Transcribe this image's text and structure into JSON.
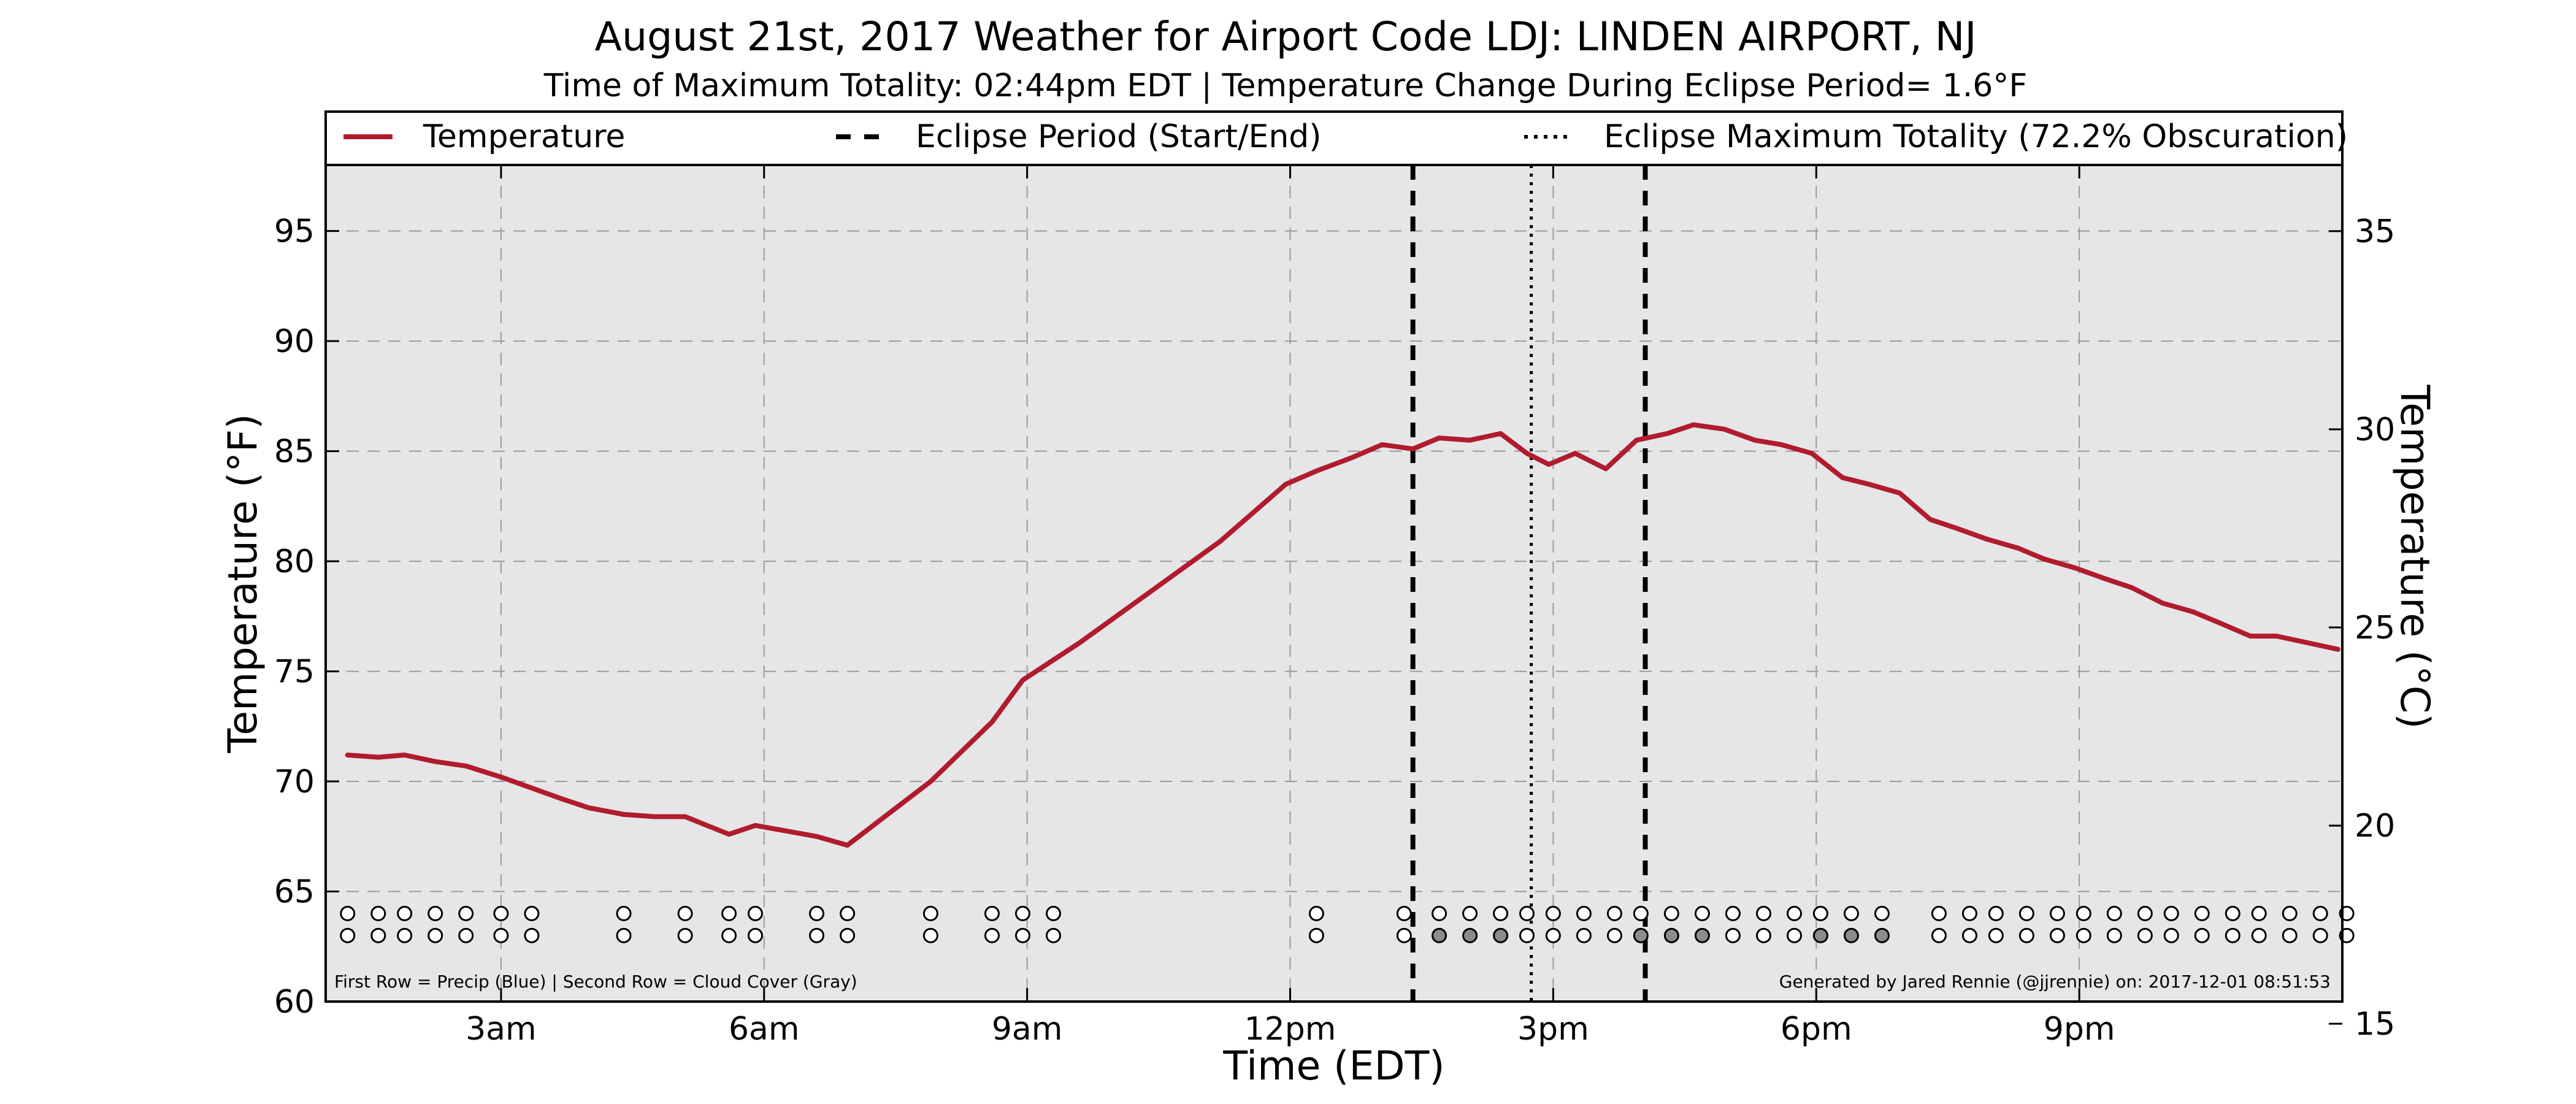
{
  "chart_data": {
    "type": "line",
    "title": "August 21st, 2017 Weather for Airport Code LDJ: LINDEN AIRPORT, NJ",
    "subtitle": "Time of Maximum Totality: 02:44pm EDT | Temperature Change During Eclipse Period= 1.6°F",
    "xlabel": "Time (EDT)",
    "ylabel": "Temperature (°F)",
    "ylabel_right": "Temperature (°C)",
    "xlim": [
      1.0,
      24.0
    ],
    "ylim": [
      60,
      98
    ],
    "ylim_right": [
      15.56,
      36.67
    ],
    "grid": true,
    "x_ticks": [
      {
        "value": 3,
        "label": "3am"
      },
      {
        "value": 6,
        "label": "6am"
      },
      {
        "value": 9,
        "label": "9am"
      },
      {
        "value": 12,
        "label": "12pm"
      },
      {
        "value": 15,
        "label": "3pm"
      },
      {
        "value": 18,
        "label": "6pm"
      },
      {
        "value": 21,
        "label": "9pm"
      }
    ],
    "y_ticks": [
      60,
      65,
      70,
      75,
      80,
      85,
      90,
      95
    ],
    "y_ticks_right": [
      15,
      20,
      25,
      30,
      35
    ],
    "legend": {
      "placement": "top",
      "entries": [
        {
          "label": "Temperature",
          "style": "solid"
        },
        {
          "label": "Eclipse Period (Start/End)",
          "style": "dashed"
        },
        {
          "label": "Eclipse Maximum Totality (72.2% Obscuration)",
          "style": "dotted"
        }
      ]
    },
    "series": [
      {
        "name": "Temperature",
        "color": "#b01c2e",
        "x": [
          1.25,
          1.6,
          1.9,
          2.25,
          2.6,
          3.0,
          3.35,
          3.7,
          4.0,
          4.4,
          4.75,
          5.1,
          5.6,
          5.9,
          6.6,
          6.95,
          7.9,
          8.6,
          8.95,
          9.6,
          10.4,
          11.2,
          11.95,
          12.3,
          12.7,
          13.05,
          13.4,
          13.7,
          14.05,
          14.4,
          14.7,
          14.95,
          15.25,
          15.6,
          15.95,
          16.3,
          16.6,
          16.95,
          17.3,
          17.6,
          17.95,
          18.3,
          18.6,
          18.95,
          19.3,
          19.6,
          19.95,
          20.3,
          20.6,
          20.95,
          21.3,
          21.6,
          21.95,
          22.3,
          22.6,
          22.95,
          23.25,
          23.6,
          23.95
        ],
        "y": [
          71.2,
          71.1,
          71.2,
          70.9,
          70.7,
          70.2,
          69.7,
          69.2,
          68.8,
          68.5,
          68.4,
          68.4,
          67.6,
          68.0,
          67.5,
          67.1,
          70.0,
          72.7,
          74.6,
          76.3,
          78.6,
          80.9,
          83.5,
          84.1,
          84.7,
          85.3,
          85.1,
          85.6,
          85.5,
          85.8,
          84.9,
          84.4,
          84.9,
          84.2,
          85.5,
          85.8,
          86.2,
          86.0,
          85.5,
          85.3,
          84.9,
          83.8,
          83.5,
          83.1,
          81.9,
          81.5,
          81.0,
          80.6,
          80.1,
          79.7,
          79.2,
          78.8,
          78.1,
          77.7,
          77.2,
          76.6,
          76.6,
          76.3,
          76.0
        ]
      }
    ],
    "eclipse_start": 13.4,
    "eclipse_max": 14.75,
    "eclipse_end": 16.05,
    "cloud_cover_row": {
      "row_values": {
        "precip": 64.0,
        "cloud": 63.0
      },
      "x": [
        1.25,
        1.6,
        1.9,
        2.25,
        2.6,
        3.0,
        3.35,
        4.4,
        5.1,
        5.6,
        5.9,
        6.6,
        6.95,
        7.9,
        8.6,
        8.95,
        9.3,
        12.3,
        13.3,
        13.7,
        14.05,
        14.4,
        14.7,
        15.0,
        15.35,
        15.7,
        16.0,
        16.35,
        16.7,
        17.05,
        17.4,
        17.75,
        18.05,
        18.4,
        18.75,
        19.4,
        19.75,
        20.05,
        20.4,
        20.75,
        21.05,
        21.4,
        21.75,
        22.05,
        22.4,
        22.75,
        23.05,
        23.4,
        23.75,
        24.05
      ],
      "cover": [
        "clear",
        "clear",
        "clear",
        "clear",
        "clear",
        "clear",
        "clear",
        "clear",
        "clear",
        "clear",
        "clear",
        "clear",
        "clear",
        "clear",
        "clear",
        "clear",
        "clear",
        "clear",
        "clear",
        "cloudy",
        "cloudy",
        "cloudy",
        "clear",
        "clear",
        "clear",
        "clear",
        "cloudy",
        "cloudy",
        "cloudy",
        "clear",
        "clear",
        "clear",
        "cloudy",
        "cloudy",
        "cloudy",
        "clear",
        "clear",
        "clear",
        "clear",
        "clear",
        "clear",
        "clear",
        "clear",
        "clear",
        "clear",
        "clear",
        "clear",
        "clear",
        "clear",
        "clear"
      ],
      "colors": {
        "clear": "#ffffff",
        "cloudy": "#8c8c8c"
      }
    },
    "footnote_left": "First Row = Precip (Blue) | Second Row = Cloud Cover (Gray)",
    "footnote_right": "Generated by Jared Rennie (@jjrennie) on: 2017-12-01 08:51:53"
  }
}
